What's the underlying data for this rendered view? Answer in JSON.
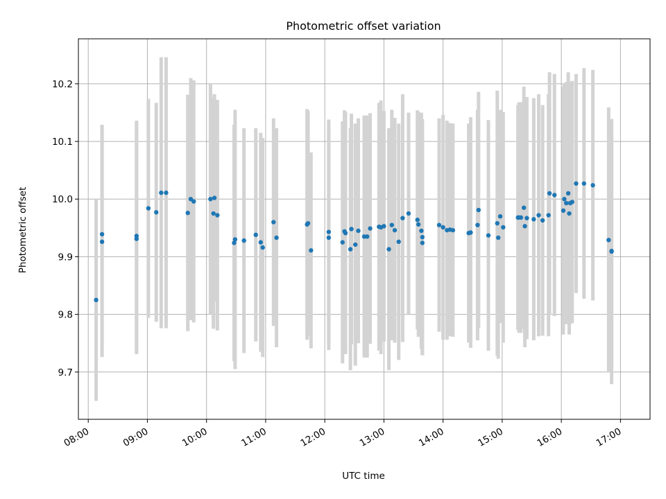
{
  "chart_data": {
    "type": "scatter",
    "title": "Photometric offset variation",
    "xlabel": "UTC time",
    "ylabel": "Photometric offset",
    "xlim": [
      "07:50",
      "17:30"
    ],
    "ylim": [
      9.618,
      10.278
    ],
    "x_ticks": [
      "08:00",
      "09:00",
      "10:00",
      "11:00",
      "12:00",
      "13:00",
      "14:00",
      "15:00",
      "16:00",
      "17:00"
    ],
    "y_ticks": [
      "9.7",
      "9.8",
      "9.9",
      "10.0",
      "10.1",
      "10.2"
    ],
    "grid": true,
    "colors": {
      "point": "#1f77b4",
      "errorbar": "#d3d3d3",
      "grid": "#b0b0b0"
    },
    "series": [
      {
        "x": [
          "08:08",
          "08:14",
          "08:14",
          "08:49",
          "08:49",
          "09:01",
          "09:09",
          "09:14",
          "09:19",
          "09:41",
          "09:44",
          "09:47",
          "10:04",
          "10:07",
          "10:08",
          "10:11",
          "10:28",
          "10:29",
          "10:38",
          "10:50",
          "10:55",
          "10:57",
          "11:08",
          "11:11",
          "11:42",
          "11:43",
          "11:46",
          "12:04",
          "12:04",
          "12:18",
          "12:20",
          "12:21",
          "12:26",
          "12:27",
          "12:31",
          "12:34",
          "12:40",
          "12:43",
          "12:46",
          "12:55",
          "12:57",
          "13:00",
          "13:05",
          "13:08",
          "13:11",
          "13:15",
          "13:19",
          "13:25",
          "13:34",
          "13:35",
          "13:38",
          "13:39",
          "13:39",
          "13:56",
          "14:00",
          "14:04",
          "14:07",
          "14:10",
          "14:26",
          "14:28",
          "14:35",
          "14:36",
          "14:46",
          "14:55",
          "14:56",
          "14:58",
          "15:01",
          "15:16",
          "15:17",
          "15:19",
          "15:22",
          "15:23",
          "15:25",
          "15:32",
          "15:37",
          "15:41",
          "15:47",
          "15:48",
          "15:53",
          "16:02",
          "16:03",
          "16:05",
          "16:07",
          "16:08",
          "16:09",
          "16:11",
          "16:15",
          "16:23",
          "16:32",
          "16:48",
          "16:51",
          "16:51"
        ],
        "y": [
          9.825,
          9.926,
          9.939,
          9.936,
          9.931,
          9.984,
          9.977,
          10.011,
          10.011,
          9.976,
          10.0,
          9.996,
          10.0,
          9.975,
          10.002,
          9.972,
          9.924,
          9.93,
          9.928,
          9.938,
          9.925,
          9.916,
          9.96,
          9.933,
          9.956,
          9.958,
          9.911,
          9.943,
          9.933,
          9.925,
          9.944,
          9.941,
          9.913,
          9.948,
          9.921,
          9.945,
          9.935,
          9.935,
          9.949,
          9.952,
          9.951,
          9.953,
          9.913,
          9.955,
          9.946,
          9.926,
          9.967,
          9.975,
          9.964,
          9.956,
          9.945,
          9.934,
          9.924,
          9.955,
          9.951,
          9.946,
          9.947,
          9.946,
          9.941,
          9.942,
          9.955,
          9.981,
          9.937,
          9.958,
          9.933,
          9.97,
          9.951,
          9.968,
          9.968,
          9.968,
          9.985,
          9.953,
          9.967,
          9.965,
          9.972,
          9.963,
          9.972,
          10.01,
          10.007,
          9.98,
          10.0,
          9.993,
          10.01,
          9.975,
          9.993,
          9.995,
          10.027,
          10.027,
          10.024,
          9.929,
          9.909,
          9.91
        ],
        "yerr": [
          0.175,
          0.2,
          0.19,
          0.2,
          0.2,
          0.19,
          0.19,
          0.235,
          0.235,
          0.205,
          0.21,
          0.21,
          0.2,
          0.2,
          0.18,
          0.2,
          0.205,
          0.225,
          0.195,
          0.185,
          0.19,
          0.19,
          0.18,
          0.19,
          0.2,
          0.195,
          0.17,
          0.195,
          0.195,
          0.21,
          0.21,
          0.21,
          0.21,
          0.2,
          0.21,
          0.195,
          0.21,
          0.21,
          0.2,
          0.215,
          0.22,
          0.2,
          0.21,
          0.2,
          0.195,
          0.205,
          0.215,
          0.175,
          0.19,
          0.195,
          0.205,
          0.205,
          0.195,
          0.185,
          0.195,
          0.19,
          0.185,
          0.185,
          0.19,
          0.2,
          0.2,
          0.205,
          0.2,
          0.23,
          0.21,
          0.185,
          0.2,
          0.195,
          0.2,
          0.2,
          0.21,
          0.21,
          0.21,
          0.21,
          0.21,
          0.2,
          0.21,
          0.21,
          0.21,
          0.215,
          0.2,
          0.21,
          0.21,
          0.21,
          0.21,
          0.21,
          0.19,
          0.2,
          0.2,
          0.23,
          0.23,
          0.2
        ]
      }
    ]
  }
}
